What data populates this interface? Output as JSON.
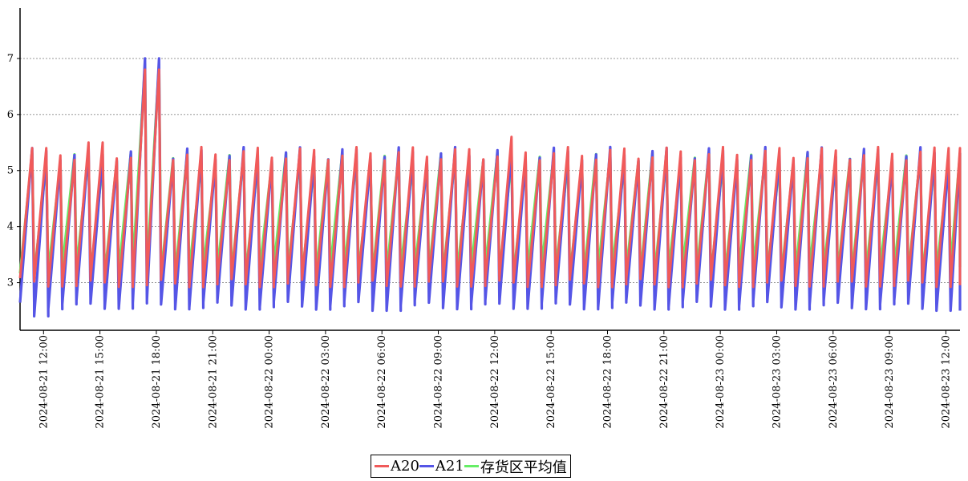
{
  "chart_data": {
    "type": "line",
    "x_start": "2024-08-21 10:45",
    "x_end": "2024-08-23 12:45",
    "x_ticks": [
      "2024-08-21 12:00",
      "2024-08-21 15:00",
      "2024-08-21 18:00",
      "2024-08-21 21:00",
      "2024-08-22 00:00",
      "2024-08-22 03:00",
      "2024-08-22 06:00",
      "2024-08-22 09:00",
      "2024-08-22 12:00",
      "2024-08-22 15:00",
      "2024-08-22 18:00",
      "2024-08-22 21:00",
      "2024-08-23 00:00",
      "2024-08-23 03:00",
      "2024-08-23 06:00",
      "2024-08-23 09:00",
      "2024-08-23 12:00"
    ],
    "y_ticks": [
      3,
      4,
      5,
      6,
      7
    ],
    "ylim": [
      2.15,
      7.9
    ],
    "grid": "horizontal-dashed",
    "legend_position": "bottom-center",
    "pattern": "sawtooth",
    "cycle_minutes": 45,
    "series": [
      {
        "name": "A20",
        "color": "#f05a5a",
        "cycle_min": 3.0,
        "cycle_max": 5.3,
        "excursions": [
          {
            "x": "2024-08-21 11:05",
            "y": 5.4
          },
          {
            "x": "2024-08-21 14:15",
            "y": 5.5
          },
          {
            "x": "2024-08-21 17:00",
            "y": 6.8
          },
          {
            "x": "2024-08-22 12:15",
            "y": 5.6
          },
          {
            "x": "2024-08-23 12:00",
            "y": 5.4
          }
        ]
      },
      {
        "name": "A21",
        "color": "#5555e6",
        "cycle_min": 2.6,
        "cycle_max": 5.3,
        "excursions": [
          {
            "x": "2024-08-21 11:30",
            "y": 2.4
          },
          {
            "x": "2024-08-21 14:30",
            "y": 5.2
          },
          {
            "x": "2024-08-21 17:05",
            "y": 7.0
          },
          {
            "x": "2024-08-22 05:50",
            "y": 2.5
          },
          {
            "x": "2024-08-23 11:45",
            "y": 2.5
          }
        ]
      },
      {
        "name": "存货区平均值",
        "color": "#66ee66",
        "cycle_min": 3.2,
        "cycle_max": 5.2,
        "excursions": [
          {
            "x": "2024-08-21 10:45",
            "y": 4.3
          },
          {
            "x": "2024-08-21 15:00",
            "y": 5.0
          },
          {
            "x": "2024-08-21 17:05",
            "y": 6.9
          }
        ]
      }
    ]
  }
}
